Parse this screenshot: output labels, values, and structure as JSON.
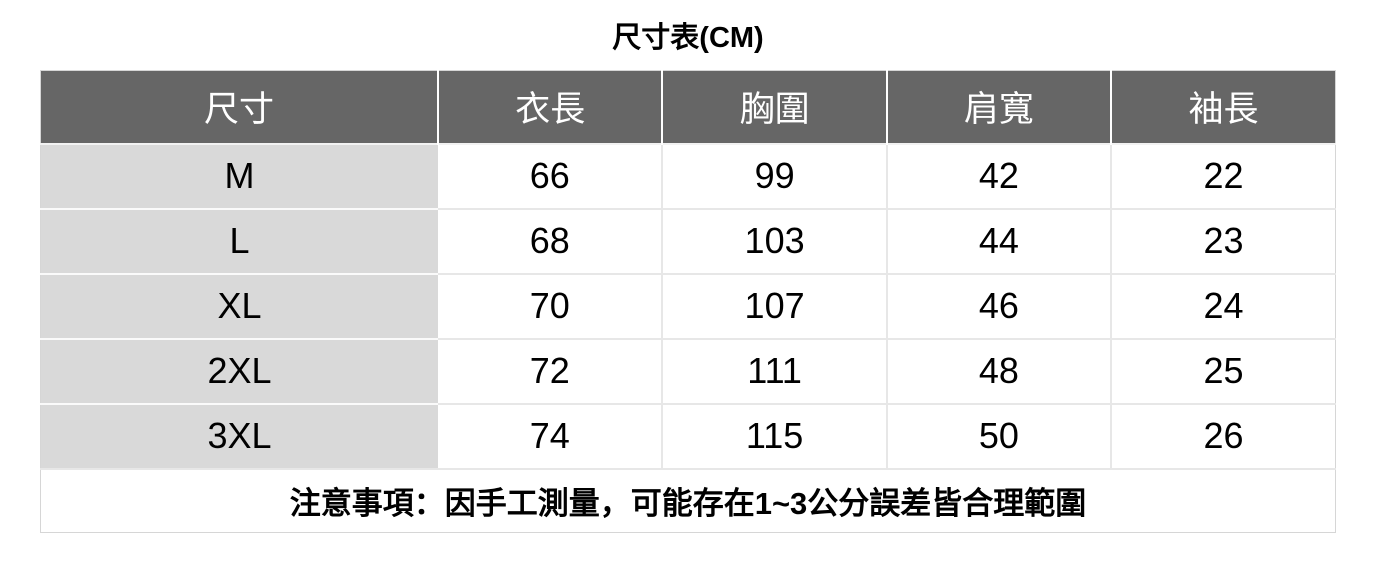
{
  "title": "尺寸表(CM)",
  "table": {
    "columns": [
      "尺寸",
      "衣長",
      "胸圍",
      "肩寬",
      "袖長"
    ],
    "rows": [
      {
        "size": "M",
        "values": [
          "66",
          "99",
          "42",
          "22"
        ]
      },
      {
        "size": "L",
        "values": [
          "68",
          "103",
          "44",
          "23"
        ]
      },
      {
        "size": "XL",
        "values": [
          "70",
          "107",
          "46",
          "24"
        ]
      },
      {
        "size": "2XL",
        "values": [
          "72",
          "111",
          "48",
          "25"
        ]
      },
      {
        "size": "3XL",
        "values": [
          "74",
          "115",
          "50",
          "26"
        ]
      }
    ],
    "note": "注意事項：因手工測量，可能存在1~3公分誤差皆合理範圍"
  },
  "colors": {
    "header_bg": "#666666",
    "header_text": "#ffffff",
    "size_column_bg": "#d9d9d9",
    "grid_line": "#e7e7e7",
    "body_text": "#000000"
  },
  "chart_data": {
    "type": "table",
    "title": "尺寸表(CM)",
    "columns": [
      "尺寸",
      "衣長",
      "胸圍",
      "肩寬",
      "袖長"
    ],
    "rows": [
      [
        "M",
        66,
        99,
        42,
        22
      ],
      [
        "L",
        68,
        103,
        44,
        23
      ],
      [
        "XL",
        70,
        107,
        46,
        24
      ],
      [
        "2XL",
        72,
        111,
        48,
        25
      ],
      [
        "3XL",
        74,
        115,
        50,
        26
      ]
    ],
    "units": "CM",
    "note": "注意事項：因手工測量，可能存在1~3公分誤差皆合理範圍"
  }
}
